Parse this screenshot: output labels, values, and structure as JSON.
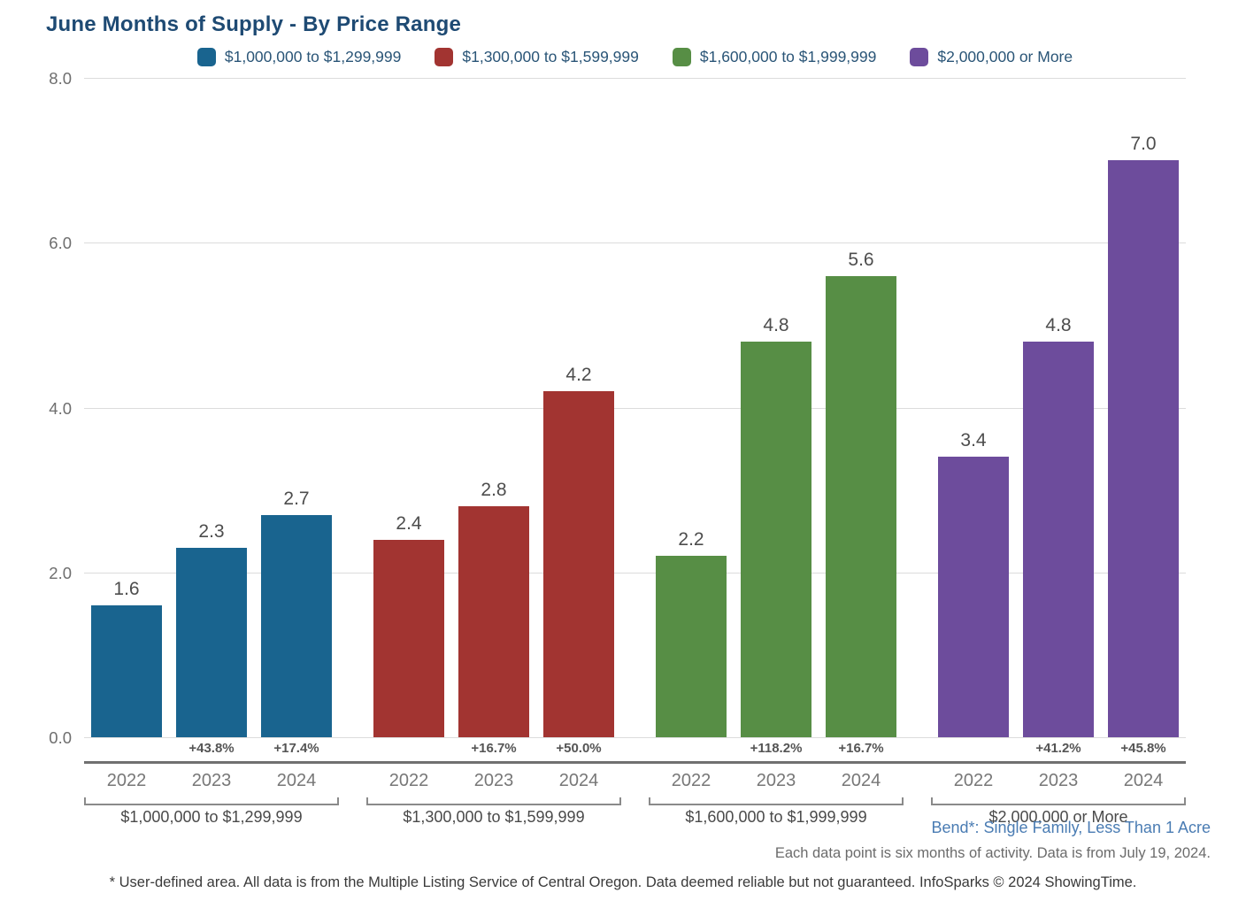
{
  "page": {
    "title": "June Months of Supply - By Price Range"
  },
  "chart_data": {
    "type": "bar",
    "title": "June Months of Supply - By Price Range",
    "xlabel": "",
    "ylabel": "",
    "ylim": [
      0,
      8
    ],
    "ytick_labels": [
      "0.0",
      "2.0",
      "4.0",
      "6.0",
      "8.0"
    ],
    "grid": true,
    "legend_position": "top",
    "categories": [
      "2022",
      "2023",
      "2024"
    ],
    "series": [
      {
        "name": "$1,000,000 to $1,299,999",
        "color": "#19648F",
        "values": [
          1.6,
          2.3,
          2.7
        ],
        "pct_change_labels": [
          "",
          "+43.8%",
          "+17.4%"
        ]
      },
      {
        "name": "$1,300,000 to $1,599,999",
        "color": "#A23431",
        "values": [
          2.4,
          2.8,
          4.2
        ],
        "pct_change_labels": [
          "",
          "+16.7%",
          "+50.0%"
        ]
      },
      {
        "name": "$1,600,000 to $1,999,999",
        "color": "#578E45",
        "values": [
          2.2,
          4.8,
          5.6
        ],
        "pct_change_labels": [
          "",
          "+118.2%",
          "+16.7%"
        ]
      },
      {
        "name": "$2,000,000 or More",
        "color": "#6D4C9C",
        "values": [
          3.4,
          4.8,
          7.0
        ],
        "pct_change_labels": [
          "",
          "+41.2%",
          "+45.8%"
        ]
      }
    ]
  },
  "legend": {
    "items": [
      {
        "label": "$1,000,000 to $1,299,999",
        "color": "#19648F"
      },
      {
        "label": "$1,300,000 to $1,599,999",
        "color": "#A23431"
      },
      {
        "label": "$1,600,000 to $1,999,999",
        "color": "#578E45"
      },
      {
        "label": "$2,000,000 or More",
        "color": "#6D4C9C"
      }
    ]
  },
  "footer": {
    "area_note": "Bend*: Single Family, Less Than 1 Acre",
    "data_note": "Each data point is six months of activity. Data is from July 19, 2024.",
    "disclaimer": "* User-defined area. All data is from the Multiple Listing Service of Central Oregon. Data deemed reliable but not guaranteed. InfoSparks © 2024 ShowingTime."
  }
}
